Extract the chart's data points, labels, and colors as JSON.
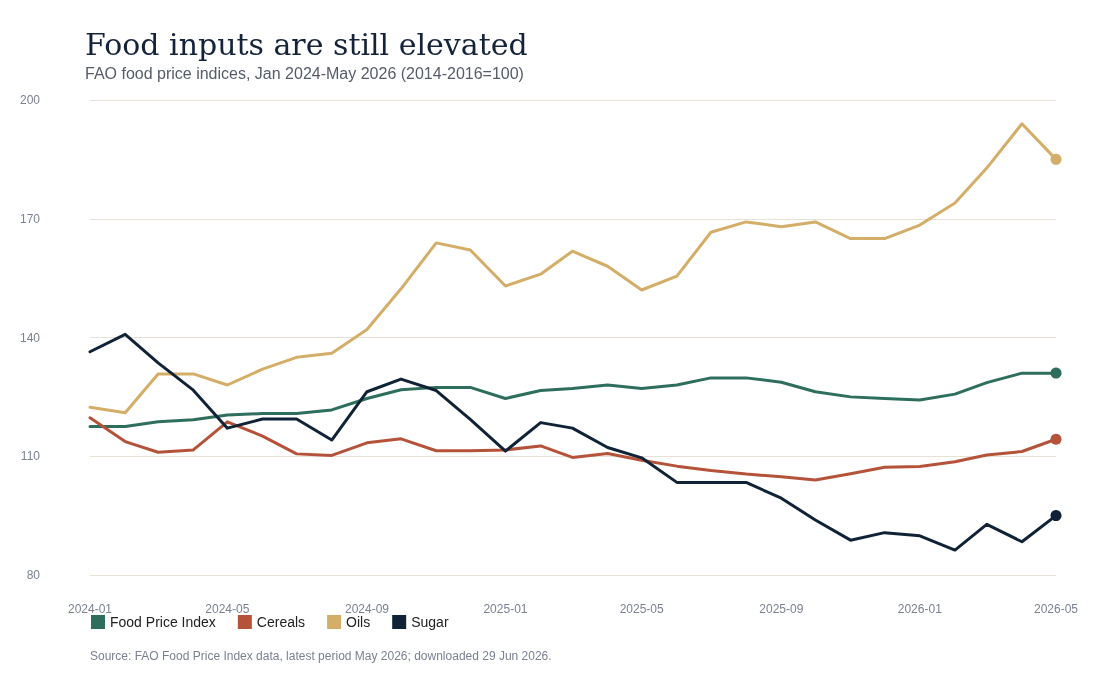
{
  "chart_data": {
    "type": "line",
    "title": "Food inputs are still elevated",
    "subtitle": "FAO food price indices, Jan 2024-May 2026 (2014-2016=100)",
    "x": [
      "2024-01",
      "2024-02",
      "2024-03",
      "2024-04",
      "2024-05",
      "2024-06",
      "2024-07",
      "2024-08",
      "2024-09",
      "2024-10",
      "2024-11",
      "2024-12",
      "2025-01",
      "2025-02",
      "2025-03",
      "2025-04",
      "2025-05",
      "2025-06",
      "2025-07",
      "2025-08",
      "2025-09",
      "2025-10",
      "2025-11",
      "2025-12",
      "2026-01",
      "2026-02",
      "2026-03",
      "2026-04",
      "2026-05"
    ],
    "series": [
      {
        "name": "Food Price Index",
        "color": "#2e6e5c",
        "values": [
          117.5,
          117.5,
          118.7,
          119.2,
          120.4,
          120.8,
          120.8,
          121.7,
          124.6,
          126.8,
          127.4,
          127.4,
          124.6,
          126.6,
          127.1,
          128,
          127.1,
          128,
          129.8,
          129.8,
          128.7,
          126.3,
          125,
          124.6,
          124.2,
          125.7,
          128.6,
          131,
          131
        ]
      },
      {
        "name": "Cereals",
        "color": "#b5533a",
        "values": [
          119.7,
          113.7,
          111,
          111.6,
          118.7,
          115.1,
          110.6,
          110.2,
          113.4,
          114.4,
          111.4,
          111.4,
          111.6,
          112.6,
          109.7,
          110.7,
          109,
          107.5,
          106.4,
          105.5,
          104.8,
          104,
          105.6,
          107.2,
          107.4,
          108.6,
          110.3,
          111.2,
          114.3
        ]
      },
      {
        "name": "Oils",
        "color": "#d4ae68",
        "values": [
          122.4,
          121,
          130.8,
          130.8,
          128,
          132,
          135,
          136,
          142,
          152.3,
          163.9,
          162.1,
          153,
          156,
          161.8,
          158,
          152,
          155.5,
          166.6,
          169.2,
          168,
          169.2,
          165,
          165,
          168.4,
          174,
          182.8,
          194,
          185
        ]
      },
      {
        "name": "Sugar",
        "color": "#0f2236",
        "values": [
          136.4,
          140.8,
          133.6,
          126.7,
          117.1,
          119.4,
          119.4,
          114.1,
          126.3,
          129.5,
          126.6,
          119.3,
          111.3,
          118.5,
          117.1,
          112.2,
          109.6,
          103.4,
          103.4,
          103.4,
          99.4,
          93.9,
          88.8,
          90.7,
          89.9,
          86.3,
          92.8,
          88.4,
          95
        ]
      }
    ],
    "xlim": [
      "2024-01",
      "2026-05"
    ],
    "xticks": [
      "2024-01",
      "2024-05",
      "2024-09",
      "2025-01",
      "2025-05",
      "2025-09",
      "2026-01",
      "2026-05"
    ],
    "ylim": [
      80,
      200
    ],
    "yticks": [
      80,
      110,
      140,
      170,
      200
    ],
    "grid": "y",
    "legend": "bottom left",
    "line_style": "solid",
    "annotations": [
      "Source: FAO Food Price Index data, latest period May 2026; downloaded 29 Jun 2026."
    ]
  }
}
